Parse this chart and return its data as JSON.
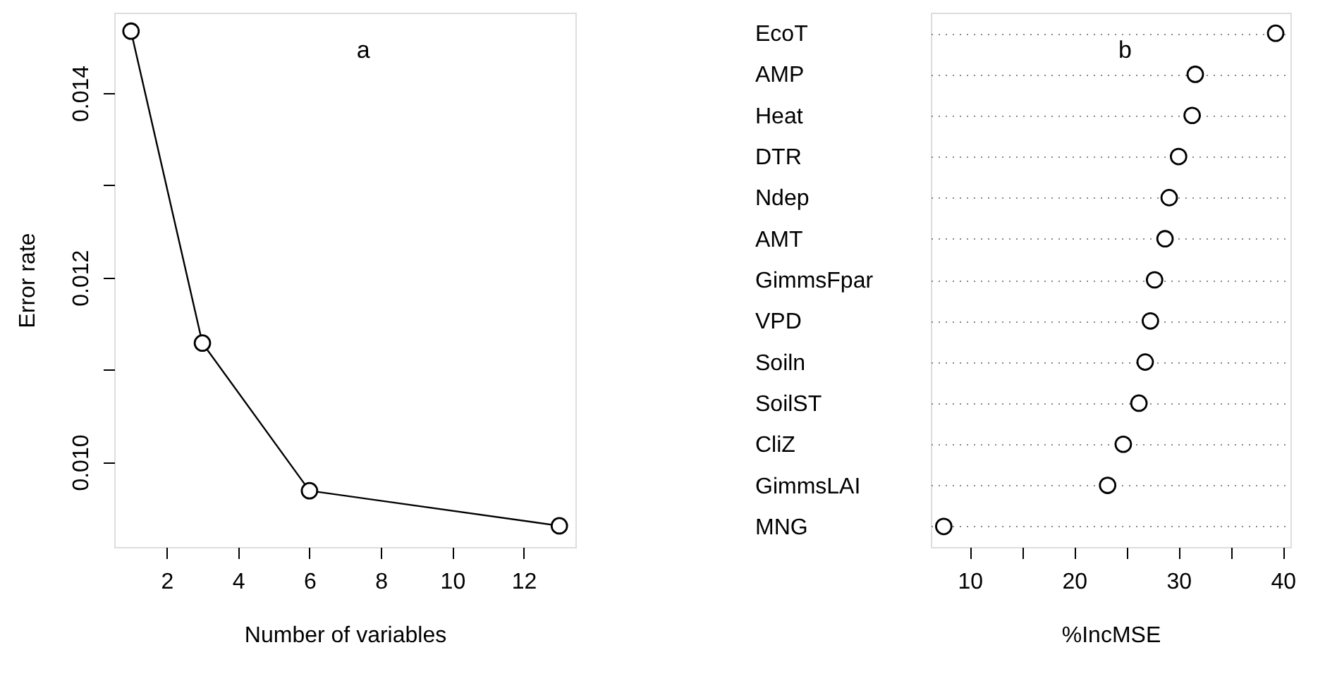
{
  "chart_data": [
    {
      "type": "line",
      "xlabel": "Number of variables",
      "ylabel": "Error rate",
      "annotations": [
        "a"
      ],
      "marker": "circle",
      "line_style": "solid",
      "grid": false,
      "x": [
        1,
        3,
        6,
        13
      ],
      "series": [
        {
          "color": "#000000",
          "values": [
            0.01467,
            0.01129,
            0.00969,
            0.00931
          ]
        }
      ],
      "xlim": [
        0.53,
        13.45
      ],
      "xticks": [
        2,
        4,
        6,
        8,
        10,
        12
      ],
      "ylim": [
        0.00908,
        0.01487
      ],
      "yticks": [
        {
          "value": 0.01,
          "label": "0.010"
        },
        {
          "value": 0.011,
          "label": null
        },
        {
          "value": 0.012,
          "label": "0.012"
        },
        {
          "value": 0.013,
          "label": null
        },
        {
          "value": 0.014,
          "label": "0.014"
        }
      ]
    },
    {
      "type": "scatter",
      "orientation": "horizontal",
      "xlabel": "%IncMSE",
      "annotations": [
        "b"
      ],
      "marker": "circle",
      "grid": "y",
      "categories": [
        "EcoT",
        "AMP",
        "Heat",
        "DTR",
        "Ndep",
        "AMT",
        "GimmsFpar",
        "VPD",
        "Soiln",
        "SoilST",
        "CliZ",
        "GimmsLAI",
        "MNG"
      ],
      "series": [
        {
          "color": "#000000",
          "values": [
            39.3,
            31.6,
            31.3,
            30.0,
            29.1,
            28.7,
            27.7,
            27.3,
            26.8,
            26.2,
            24.7,
            23.2,
            7.5
          ]
        }
      ],
      "xlim": [
        6.26,
        40.72
      ],
      "xticks": [
        10,
        {
          "value": 15,
          "label": null
        },
        20,
        {
          "value": 25,
          "label": null
        },
        30,
        {
          "value": 35,
          "label": null
        },
        40
      ]
    }
  ]
}
